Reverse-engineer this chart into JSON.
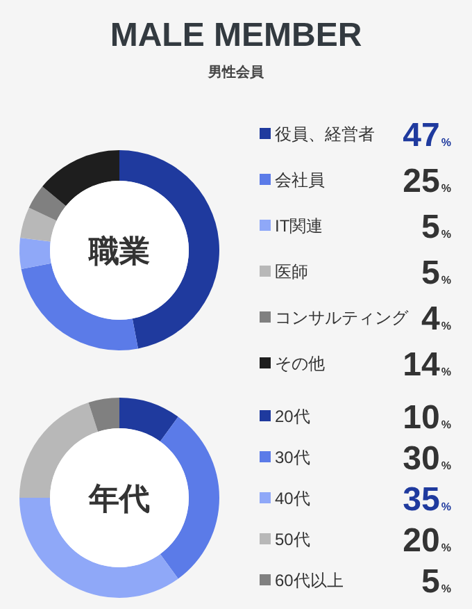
{
  "chart_data": [
    {
      "type": "donut",
      "title": "MALE MEMBER",
      "subtitle": "男性会員",
      "annotations": [
        "職業"
      ],
      "legend": "right",
      "categories": [
        "役員、経営者",
        "会社員",
        "IT関連",
        "医師",
        "コンサルティング",
        "その他"
      ],
      "values": [
        47,
        25,
        5,
        5,
        4,
        14
      ],
      "colors": [
        "#1f3a9e",
        "#5b7be8",
        "#8fa8f8",
        "#b8b8b8",
        "#808080",
        "#1e1e1e"
      ],
      "value_labels": [
        "47%",
        "25%",
        "5%",
        "5%",
        "4%",
        "14%"
      ]
    },
    {
      "type": "donut",
      "annotations": [
        "年代"
      ],
      "legend": "right",
      "categories": [
        "20代",
        "30代",
        "40代",
        "50代",
        "60代以上"
      ],
      "values": [
        10,
        30,
        35,
        20,
        5
      ],
      "colors": [
        "#1f3a9e",
        "#5b7be8",
        "#8fa8f8",
        "#b8b8b8",
        "#808080"
      ],
      "value_labels": [
        "10%",
        "30%",
        "35%",
        "20%",
        "5%"
      ]
    }
  ]
}
